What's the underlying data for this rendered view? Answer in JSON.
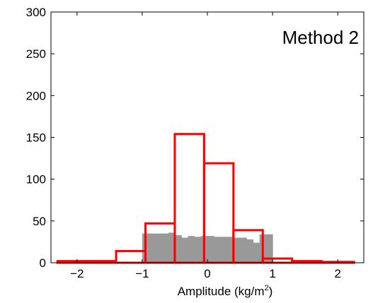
{
  "chart_data": {
    "type": "bar",
    "title": "",
    "annotation": "Method 2",
    "xlabel": "Amplitude (kg/m²)",
    "xlabel_base": "Amplitude (kg/m",
    "xlabel_sup": "2",
    "xlabel_close": ")",
    "ylabel": "",
    "xlim": [
      -2.4,
      2.4
    ],
    "ylim": [
      0,
      300
    ],
    "xticks": [
      -2,
      -1,
      0,
      1,
      2
    ],
    "xtick_labels": [
      "−2",
      "−1",
      "0",
      "1",
      "2"
    ],
    "yticks": [
      0,
      50,
      100,
      150,
      200,
      250,
      300
    ],
    "ytick_labels": [
      "0",
      "50",
      "100",
      "150",
      "200",
      "250",
      "300"
    ],
    "grid": false,
    "colors": {
      "gray_fill": "#999999",
      "red_outline": "#ff0000"
    },
    "series": [
      {
        "style": "filled-gray",
        "bin_edges": [
          -1.0,
          -0.9,
          -0.8,
          -0.7,
          -0.6,
          -0.5,
          -0.4,
          -0.3,
          -0.2,
          -0.1,
          0.0,
          0.1,
          0.2,
          0.3,
          0.4,
          0.5,
          0.6,
          0.7,
          0.8,
          0.9,
          1.0
        ],
        "values": [
          35,
          35,
          35,
          35,
          36,
          33,
          30,
          32,
          31,
          32,
          32,
          31,
          31,
          31,
          30,
          30,
          28,
          24,
          34,
          34
        ]
      },
      {
        "style": "red-outline",
        "bin_edges": [
          -2.3,
          -1.85,
          -1.4,
          -0.95,
          -0.5,
          -0.05,
          0.4,
          0.85,
          1.3,
          1.75,
          2.25
        ],
        "values": [
          2,
          2,
          14,
          47,
          154,
          119,
          39,
          5,
          2,
          1
        ]
      }
    ]
  }
}
